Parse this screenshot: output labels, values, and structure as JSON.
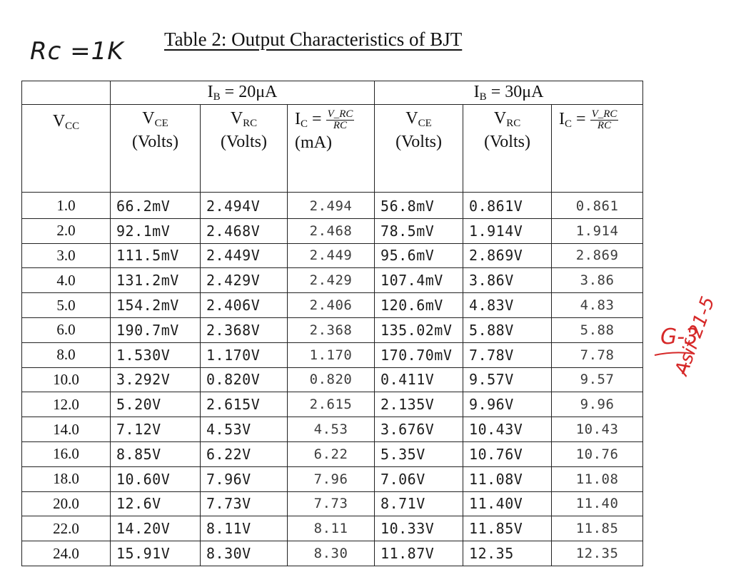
{
  "annotations": {
    "rc_note": "Rc =1K",
    "grade": "G-3",
    "signature": "A̶sif 21-5"
  },
  "title": "Table 2: Output Characteristics of BJT",
  "table": {
    "groups": [
      "I_B = 20μA",
      "I_B = 30μA"
    ],
    "group_labels": {
      "ib20_prefix": "I",
      "ib20_sub": "B",
      "ib20_value": " = 20μA",
      "ib30_prefix": "I",
      "ib30_sub": "B",
      "ib30_value": " = 30μA"
    },
    "headers": {
      "vcc_main": "V",
      "vcc_sub": "CC",
      "vce_main": "V",
      "vce_sub": "CE",
      "vrc_main": "V",
      "vrc_sub": "RC",
      "volts": "(Volts)",
      "ic_main": "I",
      "ic_sub": "C",
      "ic_eq": " =",
      "ic_num": "V_RC",
      "ic_den": "RC",
      "ma": "(mA)"
    },
    "rows": [
      {
        "vcc": "1.0",
        "vce1": "66.2mV",
        "vrc1": "2.494V",
        "ic1": "2.494",
        "vce2": "56.8mV",
        "vrc2": "0.861V",
        "ic2": "0.861"
      },
      {
        "vcc": "2.0",
        "vce1": "92.1mV",
        "vrc1": "2.468V",
        "ic1": "2.468",
        "vce2": "78.5mV",
        "vrc2": "1.914V",
        "ic2": "1.914"
      },
      {
        "vcc": "3.0",
        "vce1": "111.5mV",
        "vrc1": "2.449V",
        "ic1": "2.449",
        "vce2": "95.6mV",
        "vrc2": "2.869V",
        "ic2": "2.869"
      },
      {
        "vcc": "4.0",
        "vce1": "131.2mV",
        "vrc1": "2.429V",
        "ic1": "2.429",
        "vce2": "107.4mV",
        "vrc2": "3.86V",
        "ic2": "3.86"
      },
      {
        "vcc": "5.0",
        "vce1": "154.2mV",
        "vrc1": "2.406V",
        "ic1": "2.406",
        "vce2": "120.6mV",
        "vrc2": "4.83V",
        "ic2": "4.83"
      },
      {
        "vcc": "6.0",
        "vce1": "190.7mV",
        "vrc1": "2.368V",
        "ic1": "2.368",
        "vce2": "135.02mV",
        "vrc2": "5.88V",
        "ic2": "5.88"
      },
      {
        "vcc": "8.0",
        "vce1": "1.530V",
        "vrc1": "1.170V",
        "ic1": "1.170",
        "vce2": "170.70mV",
        "vrc2": "7.78V",
        "ic2": "7.78"
      },
      {
        "vcc": "10.0",
        "vce1": "3.292V",
        "vrc1": "0.820V",
        "ic1": "0.820",
        "vce2": "0.411V",
        "vrc2": "9.57V",
        "ic2": "9.57"
      },
      {
        "vcc": "12.0",
        "vce1": "5.20V",
        "vrc1": "2.615V",
        "ic1": "2.615",
        "vce2": "2.135V",
        "vrc2": "9.96V",
        "ic2": "9.96"
      },
      {
        "vcc": "14.0",
        "vce1": "7.12V",
        "vrc1": "4.53V",
        "ic1": "4.53",
        "vce2": "3.676V",
        "vrc2": "10.43V",
        "ic2": "10.43"
      },
      {
        "vcc": "16.0",
        "vce1": "8.85V",
        "vrc1": "6.22V",
        "ic1": "6.22",
        "vce2": "5.35V",
        "vrc2": "10.76V",
        "ic2": "10.76"
      },
      {
        "vcc": "18.0",
        "vce1": "10.60V",
        "vrc1": "7.96V",
        "ic1": "7.96",
        "vce2": "7.06V",
        "vrc2": "11.08V",
        "ic2": "11.08"
      },
      {
        "vcc": "20.0",
        "vce1": "12.6V",
        "vrc1": "7.73V",
        "ic1": "7.73",
        "vce2": "8.71V",
        "vrc2": "11.40V",
        "ic2": "11.40"
      },
      {
        "vcc": "22.0",
        "vce1": "14.20V",
        "vrc1": "8.11V",
        "ic1": "8.11",
        "vce2": "10.33V",
        "vrc2": "11.85V",
        "ic2": "11.85"
      },
      {
        "vcc": "24.0",
        "vce1": "15.91V",
        "vrc1": "8.30V",
        "ic1": "8.30",
        "vce2": "11.87V",
        "vrc2": "12.35",
        "ic2": "12.35"
      }
    ]
  },
  "colors": {
    "ink": "#1c1c1c",
    "pencil": "#3d3d3d",
    "red_pen": "#d62828"
  }
}
